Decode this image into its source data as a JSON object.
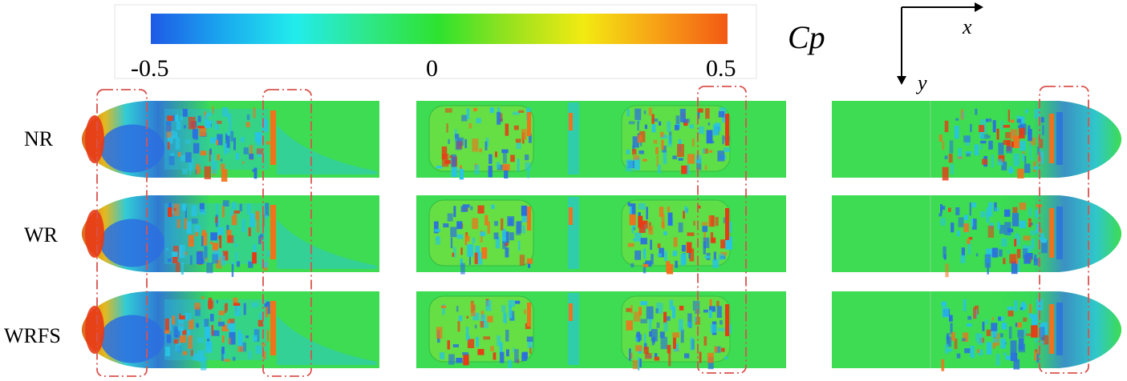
{
  "colorbar": {
    "min_label": "-0.5",
    "mid_label": "0",
    "max_label": "0.5",
    "variable": "Cp",
    "colors": [
      "#1e5ae6",
      "#1aa8ef",
      "#22ecec",
      "#2ee78a",
      "#2ee22e",
      "#9ae21e",
      "#f2ea12",
      "#f7a216",
      "#f25a14"
    ]
  },
  "axes": {
    "x_label": "x",
    "y_label": "y"
  },
  "rows": [
    {
      "label": "NR"
    },
    {
      "label": "WR"
    },
    {
      "label": "WRFS"
    }
  ],
  "highlight_color": "#d9534f",
  "field_colors": {
    "background": "#3ddc52",
    "low": "#2b6fe0",
    "mid_low": "#27c3e6",
    "high": "#f0721c",
    "peak": "#e83a16"
  }
}
